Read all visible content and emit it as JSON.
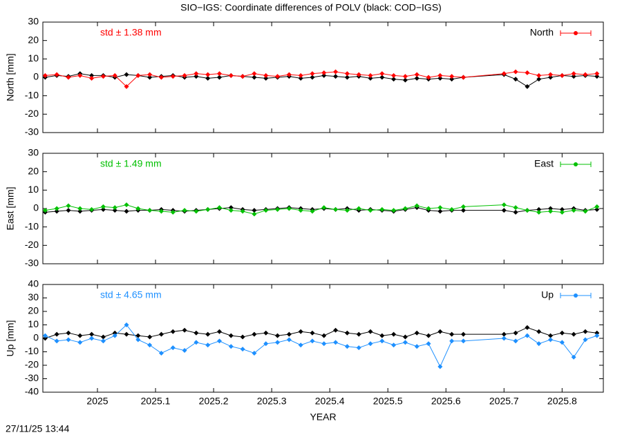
{
  "title": "SIO−IGS: Coordinate differences of POLV (black: COD−IGS)",
  "timestamp": "27/11/25 13:44",
  "chart_data": [
    {
      "type": "line",
      "y_label": "North [mm]",
      "annotation": "std ± 1.38 mm",
      "legend": "top right",
      "xlim": [
        2024.906,
        2025.871
      ],
      "xticks": [
        2025,
        2025.1,
        2025.2,
        2025.3,
        2025.4,
        2025.5,
        2025.6,
        2025.7,
        2025.8
      ],
      "ylim": [
        -30,
        30
      ],
      "yticks": [
        -30,
        -20,
        -10,
        0,
        10,
        20,
        30
      ],
      "x": [
        2024.91,
        2024.93,
        2024.95,
        2024.97,
        2024.99,
        2025.01,
        2025.03,
        2025.05,
        2025.07,
        2025.09,
        2025.11,
        2025.13,
        2025.15,
        2025.17,
        2025.19,
        2025.21,
        2025.23,
        2025.25,
        2025.27,
        2025.29,
        2025.31,
        2025.33,
        2025.35,
        2025.37,
        2025.39,
        2025.41,
        2025.43,
        2025.45,
        2025.47,
        2025.49,
        2025.51,
        2025.53,
        2025.55,
        2025.57,
        2025.59,
        2025.61,
        2025.63,
        2025.7,
        2025.72,
        2025.74,
        2025.76,
        2025.78,
        2025.8,
        2025.82,
        2025.84,
        2025.86
      ],
      "series": [
        {
          "color": "#000000",
          "values": [
            0,
            1,
            0.5,
            2,
            1,
            1,
            0,
            1.5,
            1,
            0,
            0.5,
            1,
            0,
            0.5,
            -0.5,
            0,
            1,
            0.5,
            0,
            -0.5,
            0,
            0.5,
            -0.5,
            0,
            1,
            0.5,
            0,
            0.5,
            -0.5,
            0,
            -1,
            -1.5,
            -0.5,
            -1,
            -0.5,
            -1,
            0,
            1.5,
            -1,
            -5,
            -1,
            0,
            1,
            0.5,
            1,
            0.5
          ]
        },
        {
          "name": "North",
          "color": "#ff0000",
          "values": [
            1,
            1.5,
            0,
            1,
            -0.5,
            0.5,
            1,
            -5,
            1,
            1.5,
            0,
            0.5,
            1,
            2,
            1.5,
            2,
            1,
            0.5,
            2,
            1,
            0.5,
            1.5,
            1,
            2,
            2.5,
            3,
            2,
            1.5,
            1,
            2,
            1,
            0.5,
            1.5,
            0,
            1,
            0.5,
            0,
            2,
            3,
            2.5,
            1,
            1.5,
            1,
            2,
            1.5,
            2
          ]
        }
      ]
    },
    {
      "type": "line",
      "y_label": "East [mm]",
      "annotation": "std ± 1.49 mm",
      "legend": "top right",
      "xlim": [
        2024.906,
        2025.871
      ],
      "xticks": [
        2025,
        2025.1,
        2025.2,
        2025.3,
        2025.4,
        2025.5,
        2025.6,
        2025.7,
        2025.8
      ],
      "ylim": [
        -30,
        30
      ],
      "yticks": [
        -30,
        -20,
        -10,
        0,
        10,
        20,
        30
      ],
      "x": [
        2024.91,
        2024.93,
        2024.95,
        2024.97,
        2024.99,
        2025.01,
        2025.03,
        2025.05,
        2025.07,
        2025.09,
        2025.11,
        2025.13,
        2025.15,
        2025.17,
        2025.19,
        2025.21,
        2025.23,
        2025.25,
        2025.27,
        2025.29,
        2025.31,
        2025.33,
        2025.35,
        2025.37,
        2025.39,
        2025.41,
        2025.43,
        2025.45,
        2025.47,
        2025.49,
        2025.51,
        2025.53,
        2025.55,
        2025.57,
        2025.59,
        2025.61,
        2025.63,
        2025.7,
        2025.72,
        2025.74,
        2025.76,
        2025.78,
        2025.8,
        2025.82,
        2025.84,
        2025.86
      ],
      "series": [
        {
          "color": "#000000",
          "values": [
            -2,
            -1.5,
            -1,
            -1.5,
            -1,
            -0.5,
            -1,
            -1.5,
            -1,
            -1,
            -0.5,
            -1,
            -1.5,
            -1,
            -0.5,
            0,
            0.5,
            -0.5,
            -1,
            -0.5,
            0,
            0.5,
            0,
            -0.5,
            0,
            -0.5,
            0,
            -1,
            -0.5,
            -1,
            -1.5,
            -0.5,
            0.5,
            -1,
            -1.5,
            -1,
            -1,
            -1,
            -2,
            -1,
            -0.5,
            0,
            -0.5,
            0,
            -1,
            -0.5
          ]
        },
        {
          "name": "East",
          "color": "#00c000",
          "values": [
            -1,
            0,
            1.5,
            0,
            -0.5,
            1,
            0.5,
            2,
            0,
            -1,
            -1.5,
            -2,
            -1,
            -1.5,
            -0.5,
            0.5,
            -1,
            -1.5,
            -3,
            -1,
            -0.5,
            0,
            -1,
            -1.5,
            0.5,
            -0.5,
            -1,
            0,
            -1,
            -0.5,
            -1,
            0,
            1.5,
            0,
            0.5,
            -0.5,
            1,
            2,
            0.5,
            -1,
            -2,
            -1.5,
            -2,
            -1,
            -1.5,
            1
          ]
        }
      ]
    },
    {
      "type": "line",
      "y_label": "Up [mm]",
      "x_label": "YEAR",
      "annotation": "std ± 4.65 mm",
      "legend": "top right",
      "xlim": [
        2024.906,
        2025.871
      ],
      "xticks": [
        2025,
        2025.1,
        2025.2,
        2025.3,
        2025.4,
        2025.5,
        2025.6,
        2025.7,
        2025.8
      ],
      "ylim": [
        -40,
        40
      ],
      "yticks": [
        -40,
        -30,
        -20,
        -10,
        0,
        10,
        20,
        30,
        40
      ],
      "x": [
        2024.91,
        2024.93,
        2024.95,
        2024.97,
        2024.99,
        2025.01,
        2025.03,
        2025.05,
        2025.07,
        2025.09,
        2025.11,
        2025.13,
        2025.15,
        2025.17,
        2025.19,
        2025.21,
        2025.23,
        2025.25,
        2025.27,
        2025.29,
        2025.31,
        2025.33,
        2025.35,
        2025.37,
        2025.39,
        2025.41,
        2025.43,
        2025.45,
        2025.47,
        2025.49,
        2025.51,
        2025.53,
        2025.55,
        2025.57,
        2025.59,
        2025.61,
        2025.63,
        2025.7,
        2025.72,
        2025.74,
        2025.76,
        2025.78,
        2025.8,
        2025.82,
        2025.84,
        2025.86
      ],
      "series": [
        {
          "color": "#000000",
          "values": [
            0,
            3,
            4,
            2,
            3,
            1,
            4,
            3,
            2,
            1,
            3,
            5,
            6,
            4,
            3,
            5,
            2,
            1,
            3,
            4,
            2,
            3,
            5,
            4,
            2,
            6,
            4,
            3,
            5,
            2,
            3,
            1,
            4,
            2,
            5,
            3,
            3,
            3,
            4,
            8,
            5,
            2,
            4,
            3,
            5,
            4
          ]
        },
        {
          "name": "Up",
          "color": "#1e90ff",
          "values": [
            2,
            -2,
            -1,
            -3,
            0,
            -2,
            2,
            10,
            -1,
            -5,
            -11,
            -7,
            -9,
            -3,
            -5,
            -2,
            -6,
            -8,
            -11,
            -4,
            -3,
            -1,
            -5,
            -2,
            -4,
            -3,
            -6,
            -7,
            -4,
            -2,
            -5,
            -3,
            -6,
            -4,
            -21,
            -2,
            -2,
            0,
            -2,
            2,
            -4,
            -1,
            -3,
            -14,
            -1,
            2
          ]
        }
      ]
    }
  ]
}
